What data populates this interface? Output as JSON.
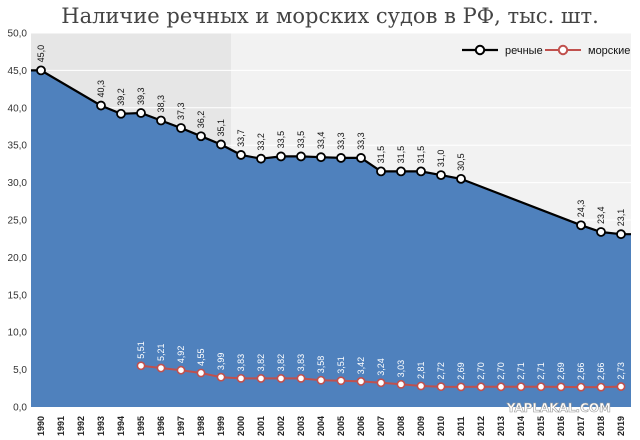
{
  "chart_data": {
    "type": "area",
    "title": "Наличие речных и морских судов в РФ, тыс. шт.",
    "ylim": [
      0,
      50
    ],
    "y_ticks": [
      "0,0",
      "5,0",
      "10,0",
      "15,0",
      "20,0",
      "25,0",
      "30,0",
      "35,0",
      "40,0",
      "45,0",
      "50,0"
    ],
    "x": [
      "1990",
      "1991",
      "1992",
      "1993",
      "1994",
      "1995",
      "1996",
      "1997",
      "1998",
      "1999",
      "2000",
      "2001",
      "2002",
      "2003",
      "2004",
      "2005",
      "2006",
      "2007",
      "2008",
      "2009",
      "2010",
      "2011",
      "2012",
      "2013",
      "2014",
      "2015",
      "2016",
      "2017",
      "2018",
      "2019"
    ],
    "legend_position": "top-right",
    "series": [
      {
        "name": "речные",
        "color": "#000000",
        "marker_fill": "#ffffff",
        "values": [
          45.0,
          null,
          null,
          40.3,
          39.2,
          39.3,
          38.3,
          37.3,
          36.2,
          35.1,
          33.7,
          33.2,
          33.5,
          33.5,
          33.4,
          33.3,
          33.3,
          31.5,
          31.5,
          31.5,
          31.0,
          30.5,
          null,
          null,
          null,
          null,
          null,
          24.3,
          23.4,
          23.1
        ],
        "labels": [
          "45,0",
          null,
          null,
          "40,3",
          "39,2",
          "39,3",
          "38,3",
          "37,3",
          "36,2",
          "35,1",
          "33,7",
          "33,2",
          "33,5",
          "33,5",
          "33,4",
          "33,3",
          "33,3",
          "31,5",
          "31,5",
          "31,5",
          "31,0",
          "30,5",
          null,
          null,
          null,
          null,
          null,
          "24,3",
          "23,4",
          "23,1"
        ]
      },
      {
        "name": "морские",
        "color": "#c0504d",
        "marker_fill": "#ffffff",
        "values": [
          null,
          null,
          null,
          null,
          null,
          5.51,
          5.21,
          4.92,
          4.55,
          3.99,
          3.83,
          3.82,
          3.82,
          3.83,
          3.58,
          3.51,
          3.42,
          3.24,
          3.03,
          2.81,
          2.72,
          2.69,
          2.7,
          2.7,
          2.71,
          2.71,
          2.69,
          2.66,
          2.66,
          2.73
        ],
        "labels": [
          null,
          null,
          null,
          null,
          null,
          "5,51",
          "5,21",
          "4,92",
          "4,55",
          "3,99",
          "3,83",
          "3,82",
          "3,82",
          "3,83",
          "3,58",
          "3,51",
          "3,42",
          "3,24",
          "3,03",
          "2,81",
          "2,72",
          "2,69",
          "2,70",
          "2,70",
          "2,71",
          "2,71",
          "2,69",
          "2,66",
          "2,66",
          "2,73"
        ]
      }
    ],
    "colors": {
      "area_fill": "#4f81bd",
      "background_left": "#e6e6e6",
      "background_right": "#f2f2f2",
      "grid": "#ffffff"
    }
  },
  "watermark": "YAPLAKAL.COM"
}
